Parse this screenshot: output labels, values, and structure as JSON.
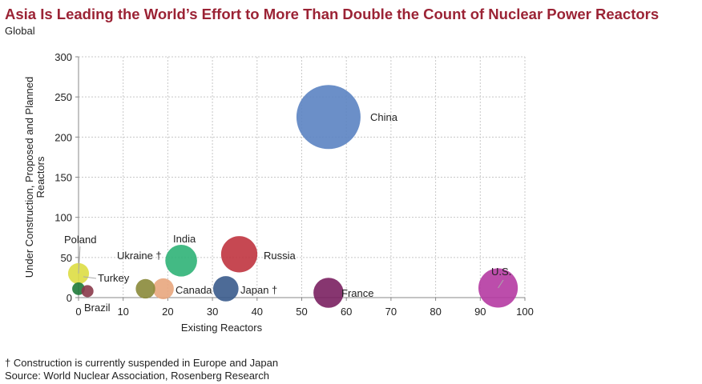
{
  "title": "Asia Is Leading the World’s Effort to More Than Double the Count of Nuclear Power Reactors",
  "subtitle": "Global",
  "footnotes": [
    "† Construction is currently suspended in Europe and Japan",
    "Source: World Nuclear Association, Rosenberg Research"
  ],
  "chart_data": {
    "type": "scatter",
    "title": "Asia Is Leading the World’s Effort to More Than Double the Count of Nuclear Power Reactors",
    "subtitle": "Global",
    "xlabel": "Existing Reactors",
    "ylabel": "Under Construction, Proposed and Planned Reactors",
    "xlim": [
      0,
      100
    ],
    "ylim": [
      0,
      300
    ],
    "xticks": [
      0,
      10,
      20,
      30,
      40,
      50,
      60,
      70,
      80,
      90,
      100
    ],
    "yticks": [
      0,
      50,
      100,
      150,
      200,
      250,
      300
    ],
    "grid": true,
    "bubble": true,
    "points": [
      {
        "label": "China",
        "x": 56,
        "y": 225,
        "color": "#5b83c2"
      },
      {
        "label": "Russia",
        "x": 36,
        "y": 54,
        "color": "#c0343f"
      },
      {
        "label": "India",
        "x": 23,
        "y": 46,
        "color": "#2fb377"
      },
      {
        "label": "Ukraine †",
        "x": 15,
        "y": 11,
        "color": "#8a8a3a"
      },
      {
        "label": "Canada",
        "x": 19,
        "y": 11,
        "color": "#e8a67d"
      },
      {
        "label": "Japan †",
        "x": 33,
        "y": 11,
        "color": "#3a5b8c"
      },
      {
        "label": "France",
        "x": 56,
        "y": 6,
        "color": "#7a2060"
      },
      {
        "label": "U.S.",
        "x": 94,
        "y": 12,
        "color": "#b53aa2"
      },
      {
        "label": "Poland",
        "x": 0,
        "y": 30,
        "color": "#dddd44"
      },
      {
        "label": "Turkey",
        "x": 0,
        "y": 11,
        "color": "#1f7a3a"
      },
      {
        "label": "Brazil",
        "x": 2,
        "y": 8,
        "color": "#8a3a4a"
      }
    ]
  }
}
